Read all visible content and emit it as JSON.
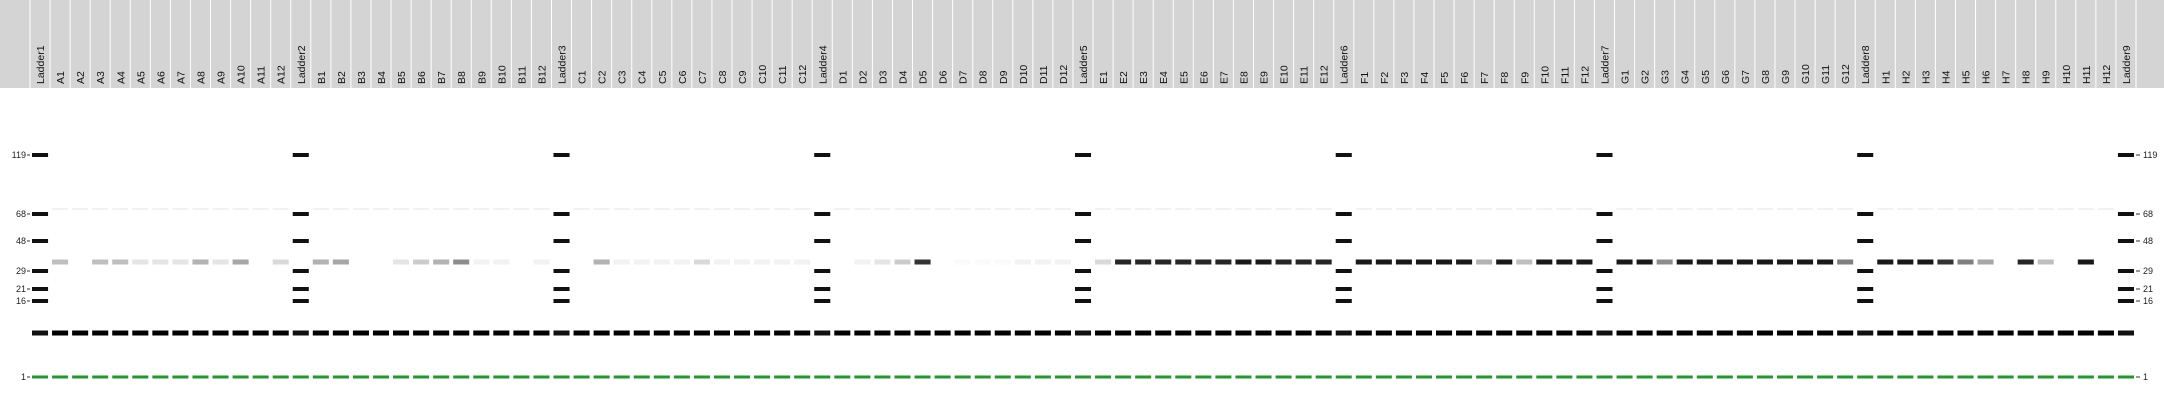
{
  "chart_data": {
    "type": "gel",
    "lanes": [
      "Ladder1",
      "A1",
      "A2",
      "A3",
      "A4",
      "A5",
      "A6",
      "A7",
      "A8",
      "A9",
      "A10",
      "A11",
      "A12",
      "Ladder2",
      "B1",
      "B2",
      "B3",
      "B4",
      "B5",
      "B6",
      "B7",
      "B8",
      "B9",
      "B10",
      "B11",
      "B12",
      "Ladder3",
      "C1",
      "C2",
      "C3",
      "C4",
      "C5",
      "C6",
      "C7",
      "C8",
      "C9",
      "C10",
      "C11",
      "C12",
      "Ladder4",
      "D1",
      "D2",
      "D3",
      "D4",
      "D5",
      "D6",
      "D7",
      "D8",
      "D9",
      "D10",
      "D11",
      "D12",
      "Ladder5",
      "E1",
      "E2",
      "E3",
      "E4",
      "E5",
      "E6",
      "E7",
      "E8",
      "E9",
      "E10",
      "E11",
      "E12",
      "Ladder6",
      "F1",
      "F2",
      "F3",
      "F4",
      "F5",
      "F6",
      "F7",
      "F8",
      "F9",
      "F10",
      "F11",
      "F12",
      "Ladder7",
      "G1",
      "G2",
      "G3",
      "G4",
      "G5",
      "G6",
      "G7",
      "G8",
      "G9",
      "G10",
      "G11",
      "G12",
      "Ladder8",
      "H1",
      "H2",
      "H3",
      "H4",
      "H5",
      "H6",
      "H7",
      "H8",
      "H9",
      "H10",
      "H11",
      "H12",
      "Ladder9"
    ],
    "y_ticks": [
      119,
      68,
      48,
      29,
      21,
      16,
      1
    ],
    "ladder_sizes": [
      119,
      68,
      48,
      29,
      21,
      16,
      1
    ],
    "marker_size": 1,
    "common_band_size": 6,
    "sample_band_size": 33,
    "sample_band_intensity": {
      "A": [
        0.25,
        0,
        0.25,
        0.25,
        0.1,
        0.1,
        0.1,
        0.3,
        0.1,
        0.35,
        0,
        0.15
      ],
      "B": [
        0.3,
        0.35,
        0,
        0,
        0.1,
        0.2,
        0.3,
        0.45,
        0.05,
        0.05,
        0,
        0.05
      ],
      "C": [
        0,
        0.3,
        0.05,
        0.05,
        0.05,
        0.05,
        0.15,
        0.05,
        0.05,
        0.05,
        0.05,
        0.05
      ],
      "D": [
        0,
        0.05,
        0.1,
        0.2,
        0.8,
        0,
        0.02,
        0.02,
        0.02,
        0.05,
        0.05,
        0.05
      ],
      "E": [
        0.15,
        0.85,
        0.85,
        0.85,
        0.85,
        0.85,
        0.85,
        0.9,
        0.9,
        0.85,
        0.85,
        0.85
      ],
      "F": [
        0.9,
        0.9,
        0.9,
        0.9,
        0.9,
        0.9,
        0.3,
        0.9,
        0.25,
        0.9,
        0.9,
        0.9
      ],
      "G": [
        0.9,
        0.9,
        0.45,
        0.9,
        0.9,
        0.9,
        0.9,
        0.9,
        0.9,
        0.9,
        0.9,
        0.5
      ],
      "H": [
        0.9,
        0.9,
        0.9,
        0.8,
        0.5,
        0.35,
        0,
        0.85,
        0.25,
        0,
        0.9,
        0
      ]
    },
    "marker_color": "#1f9a2b",
    "band_color": "#000000",
    "header_color": "#d4d4d4"
  }
}
